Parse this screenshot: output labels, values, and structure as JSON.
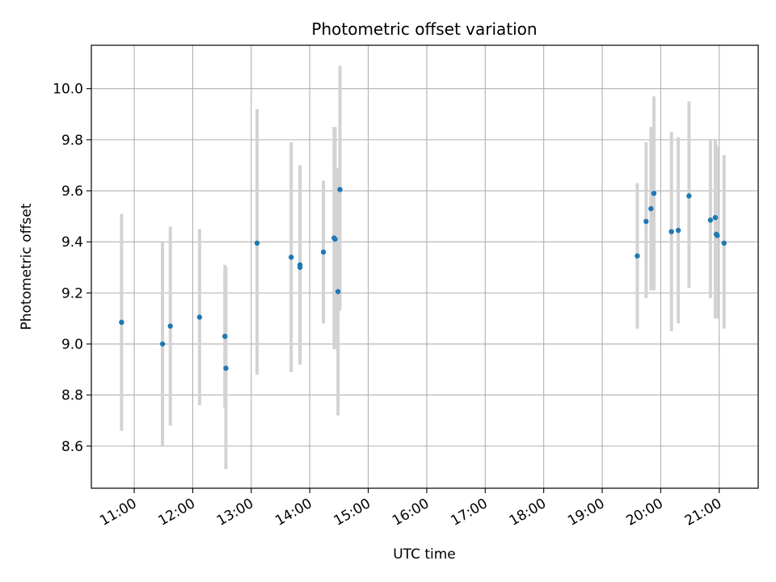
{
  "chart_data": {
    "type": "scatter",
    "title": "Photometric offset variation",
    "xlabel": "UTC time",
    "ylabel": "Photometric offset",
    "xlim": [
      "10:16",
      "21:40"
    ],
    "ylim": [
      8.435,
      10.17
    ],
    "x_ticks": [
      "11:00",
      "12:00",
      "13:00",
      "14:00",
      "15:00",
      "16:00",
      "17:00",
      "18:00",
      "19:00",
      "20:00",
      "21:00"
    ],
    "y_ticks": [
      8.6,
      8.8,
      9.0,
      9.2,
      9.4,
      9.6,
      9.8,
      10.0
    ],
    "y_tick_labels": [
      "8.6",
      "8.8",
      "9.0",
      "9.2",
      "9.4",
      "9.6",
      "9.8",
      "10.0"
    ],
    "grid": true,
    "point_color": "#1f77b4",
    "errorbar_color": "#d3d3d3",
    "points": [
      {
        "x": "10:47",
        "y": 9.085,
        "lo": 8.66,
        "hi": 9.51
      },
      {
        "x": "11:29",
        "y": 9.0,
        "lo": 8.6,
        "hi": 9.4
      },
      {
        "x": "11:37",
        "y": 9.07,
        "lo": 8.68,
        "hi": 9.46
      },
      {
        "x": "12:07",
        "y": 9.105,
        "lo": 8.76,
        "hi": 9.45
      },
      {
        "x": "12:33",
        "y": 9.03,
        "lo": 8.75,
        "hi": 9.31
      },
      {
        "x": "12:34",
        "y": 8.905,
        "lo": 8.51,
        "hi": 9.3
      },
      {
        "x": "13:06",
        "y": 9.395,
        "lo": 8.88,
        "hi": 9.92
      },
      {
        "x": "13:41",
        "y": 9.34,
        "lo": 8.89,
        "hi": 9.79
      },
      {
        "x": "13:50",
        "y": 9.31,
        "lo": 8.92,
        "hi": 9.7
      },
      {
        "x": "13:50",
        "y": 9.3,
        "lo": 8.92,
        "hi": 9.7
      },
      {
        "x": "14:14",
        "y": 9.36,
        "lo": 9.08,
        "hi": 9.64
      },
      {
        "x": "14:25",
        "y": 9.415,
        "lo": 8.98,
        "hi": 9.85
      },
      {
        "x": "14:26",
        "y": 9.41,
        "lo": 8.98,
        "hi": 9.85
      },
      {
        "x": "14:29",
        "y": 9.205,
        "lo": 8.72,
        "hi": 9.69
      },
      {
        "x": "14:31",
        "y": 9.605,
        "lo": 9.13,
        "hi": 10.09
      },
      {
        "x": "19:36",
        "y": 9.345,
        "lo": 9.06,
        "hi": 9.63
      },
      {
        "x": "19:45",
        "y": 9.48,
        "lo": 9.18,
        "hi": 9.79
      },
      {
        "x": "19:50",
        "y": 9.53,
        "lo": 9.21,
        "hi": 9.85
      },
      {
        "x": "19:53",
        "y": 9.59,
        "lo": 9.21,
        "hi": 9.97
      },
      {
        "x": "20:11",
        "y": 9.44,
        "lo": 9.05,
        "hi": 9.83
      },
      {
        "x": "20:18",
        "y": 9.445,
        "lo": 9.08,
        "hi": 9.81
      },
      {
        "x": "20:29",
        "y": 9.58,
        "lo": 9.22,
        "hi": 9.95
      },
      {
        "x": "20:51",
        "y": 9.485,
        "lo": 9.18,
        "hi": 9.8
      },
      {
        "x": "20:56",
        "y": 9.495,
        "lo": 9.1,
        "hi": 9.8
      },
      {
        "x": "20:57",
        "y": 9.43,
        "lo": 9.1,
        "hi": 9.78
      },
      {
        "x": "20:58",
        "y": 9.425,
        "lo": 9.1,
        "hi": 9.77
      },
      {
        "x": "21:05",
        "y": 9.395,
        "lo": 9.06,
        "hi": 9.74
      }
    ]
  }
}
